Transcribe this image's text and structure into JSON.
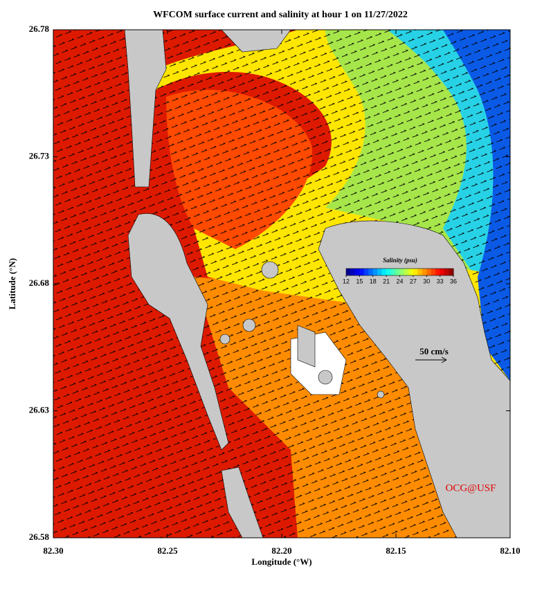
{
  "title": "WFCOM surface current and salinity at hour 1 on 11/27/2022",
  "x_label": "Longitude (°W)",
  "y_label": "Latitude (°N)",
  "xlim": [
    82.3,
    82.1
  ],
  "xticks": [
    {
      "value": 82.3,
      "label": "82.30"
    },
    82.25,
    {
      "value": 82.2,
      "label": "82.20"
    },
    82.15,
    {
      "value": 82.1,
      "label": "82.10"
    }
  ],
  "ylim": [
    26.58,
    26.78
  ],
  "yticks": [
    26.58,
    26.63,
    26.68,
    26.73,
    26.78
  ],
  "colorbar": {
    "label": "Salinity (psu)",
    "lim": [
      12,
      36
    ],
    "ticks": [
      12,
      15,
      18,
      21,
      24,
      27,
      30,
      33,
      36
    ]
  },
  "scale_label": "50 cm/s",
  "credit": "OCG@USF"
}
